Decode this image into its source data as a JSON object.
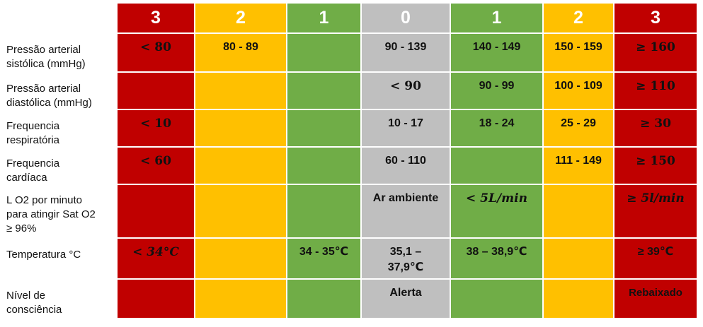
{
  "header": {
    "scores": [
      "3",
      "2",
      "1",
      "0",
      "1",
      "2",
      "3"
    ]
  },
  "rows": [
    {
      "label_line1": "Pressão arterial",
      "label_line2": "sistólica (mmHg)",
      "cells": [
        "< 80",
        "80 - 89",
        "",
        "90 - 139",
        "140 - 149",
        "150 - 159",
        "≥ 160"
      ]
    },
    {
      "label_line1": "Pressão arterial",
      "label_line2": "diastólica (mmHg)",
      "cells": [
        "",
        "",
        "",
        "< 90",
        "90 - 99",
        "100 - 109",
        "≥ 110"
      ]
    },
    {
      "label_line1": "Frequencia",
      "label_line2": "respiratória",
      "cells": [
        "< 10",
        "",
        "",
        "10 - 17",
        "18 - 24",
        "25 - 29",
        "≥ 30"
      ]
    },
    {
      "label_line1": "Frequencia",
      "label_line2": "cardíaca",
      "cells": [
        "< 60",
        "",
        "",
        "60 - 110",
        "",
        "111 - 149",
        "≥ 150"
      ]
    },
    {
      "label_line1": "L O2 por minuto",
      "label_line2": "para atingir Sat O2",
      "label_line3": "≥ 96%",
      "cells": [
        "",
        "",
        "",
        "Ar ambiente",
        "< 5L/min",
        "",
        "≥ 5l/min"
      ]
    },
    {
      "label_line1": "Temperatura °C",
      "cells": [
        "< 34°C",
        "",
        "34 - 35℃",
        "35,1 –",
        "38 – 38,9℃",
        "",
        "≥ 39℃"
      ],
      "extra_line": "37,9℃"
    },
    {
      "label_line1": "Nível de",
      "label_line2": "consciência",
      "cells": [
        "",
        "",
        "",
        "Alerta",
        "",
        "",
        "Rebaixado"
      ]
    }
  ],
  "colors": {
    "red": "#c00000",
    "yellow": "#ffc000",
    "green": "#70ad47",
    "grey": "#bfbfbf",
    "header_grey_text": "#ffffff"
  }
}
